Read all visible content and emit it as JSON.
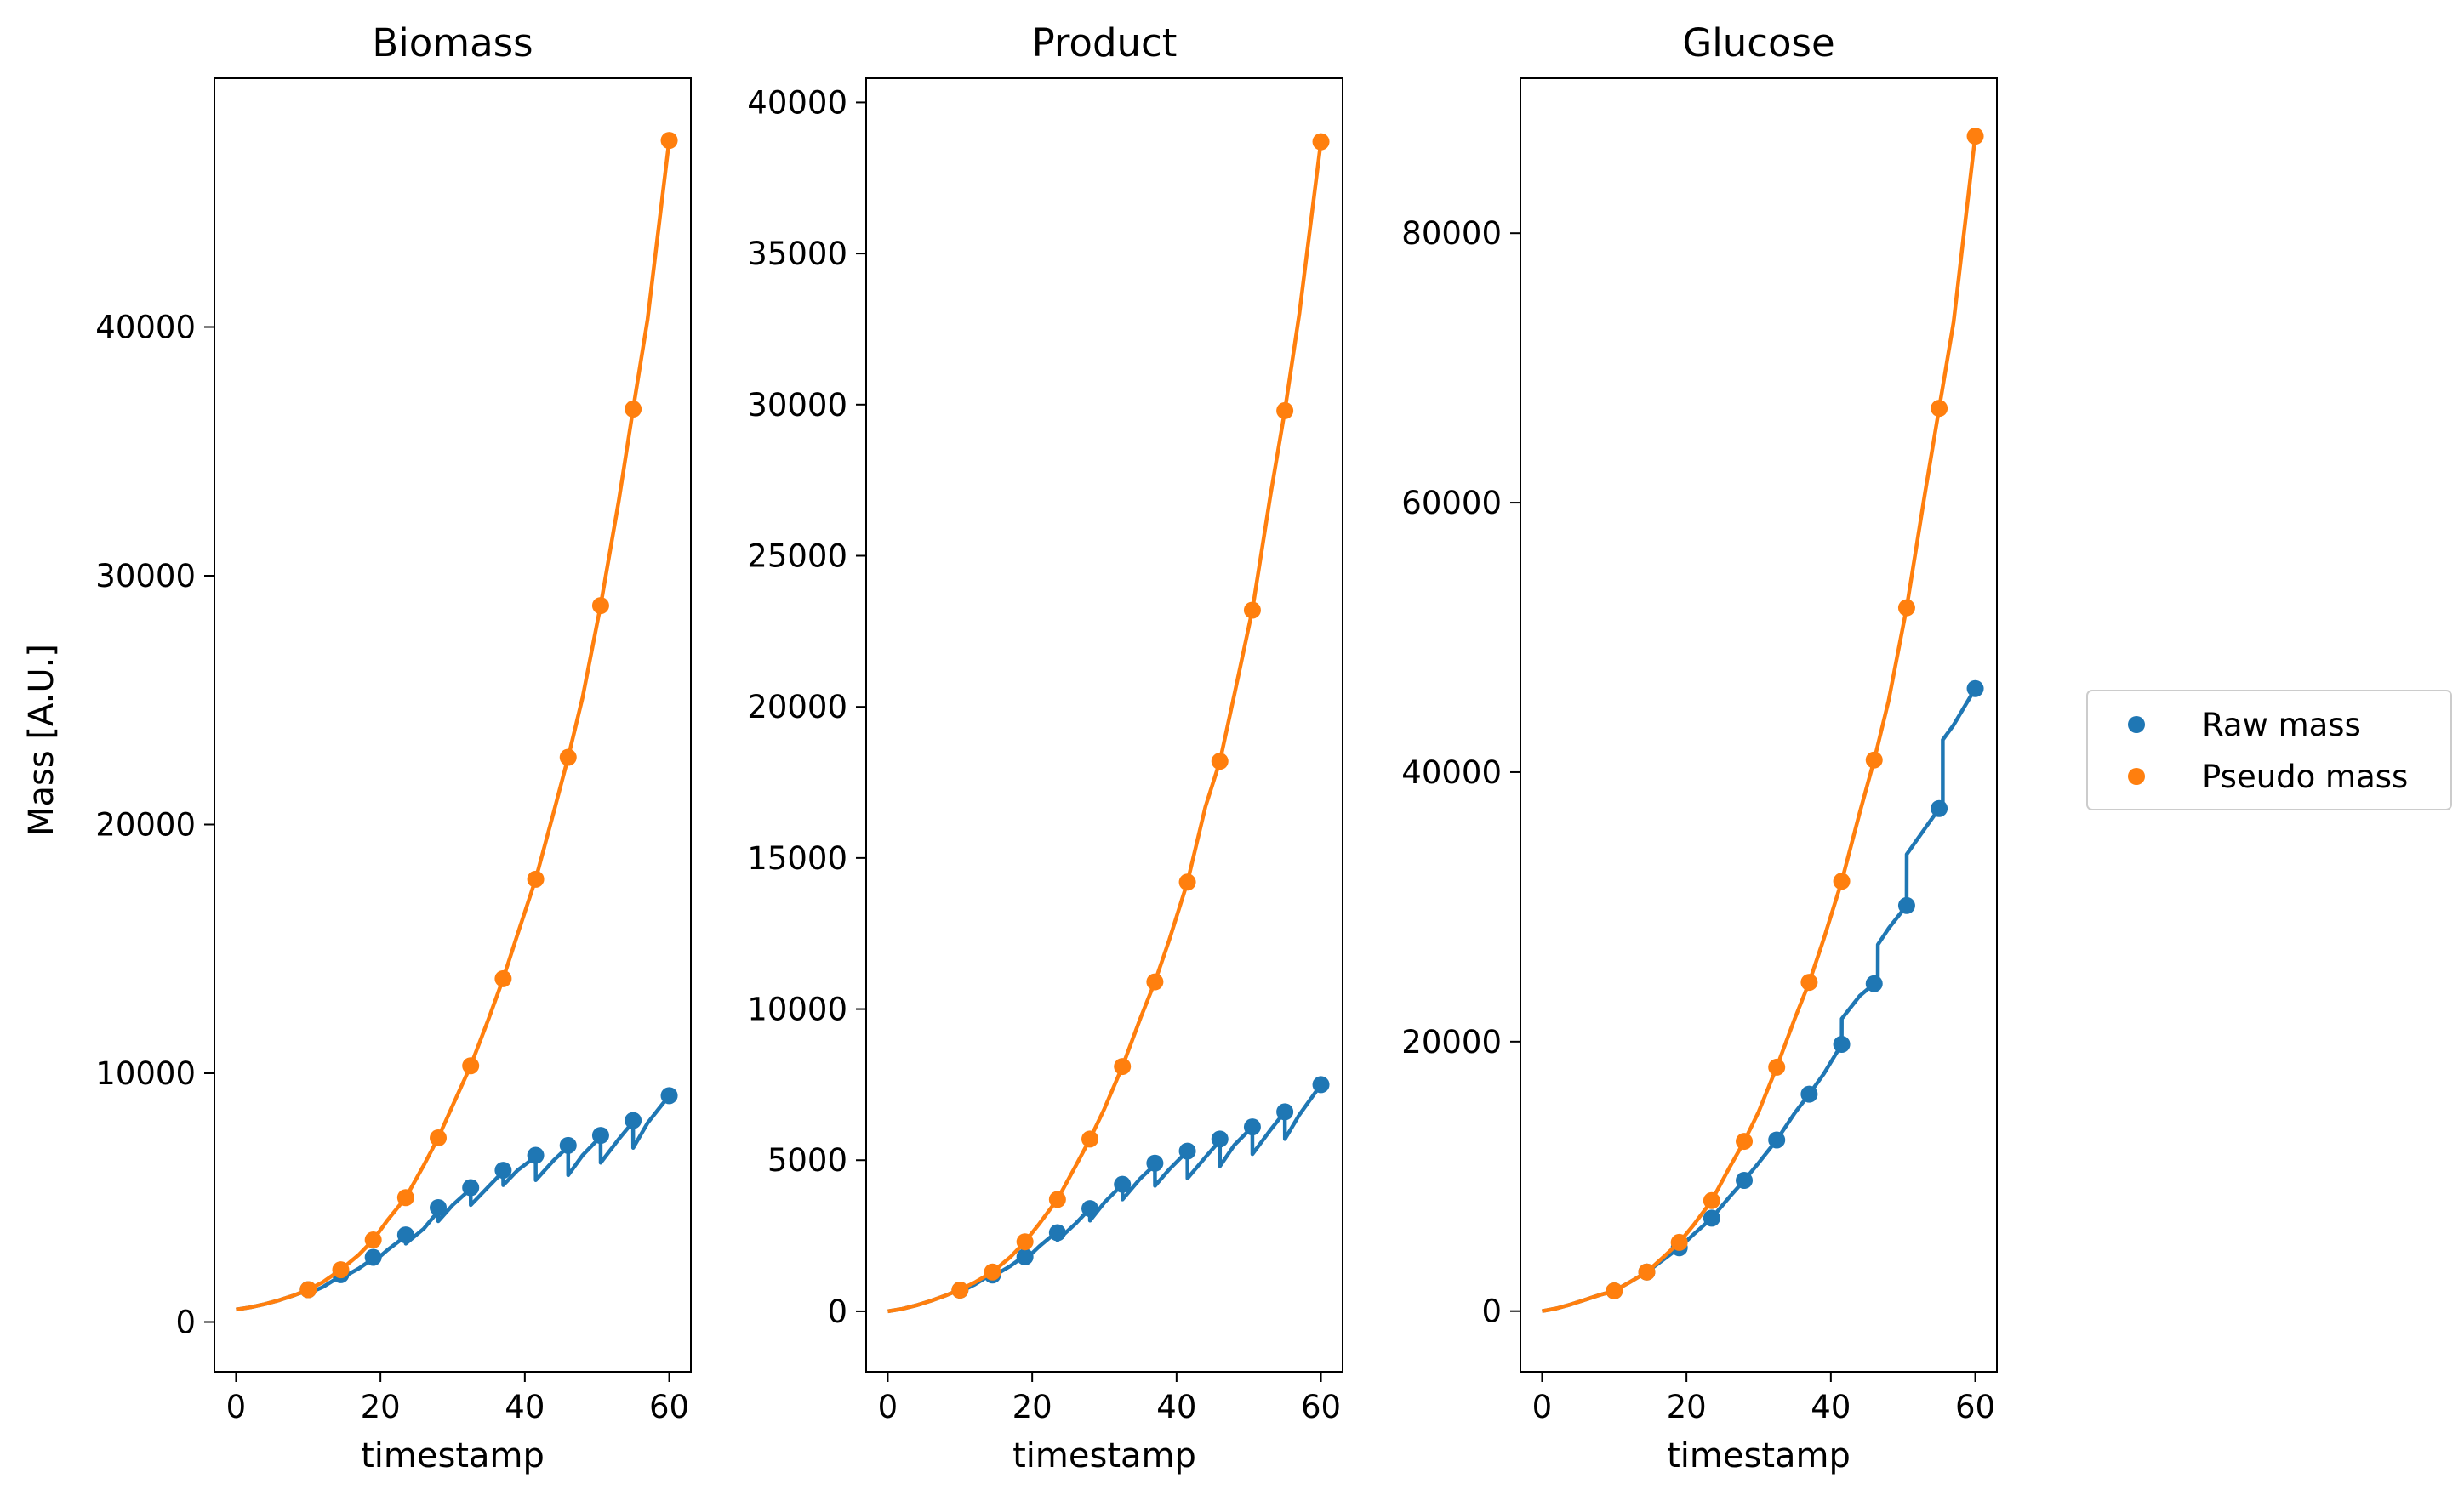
{
  "ylabel": "Mass [A.U.]",
  "legend": {
    "position": "right",
    "entries": [
      {
        "label": "Raw mass",
        "color": "#1f77b4"
      },
      {
        "label": "Pseudo mass",
        "color": "#ff7f0e"
      }
    ]
  },
  "colors": {
    "raw": "#1f77b4",
    "pseudo": "#ff7f0e"
  },
  "chart_data": [
    {
      "type": "line",
      "title": "Biomass",
      "xlabel": "timestamp",
      "ylabel": "Mass [A.U.]",
      "xlim": [
        -3,
        63
      ],
      "ylim": [
        -2000,
        50000
      ],
      "xticks": [
        0,
        20,
        40,
        60
      ],
      "yticks": [
        0,
        10000,
        20000,
        30000,
        40000
      ],
      "grid": false,
      "series": [
        {
          "name": "Raw mass",
          "markers": {
            "x": [
              10,
              14.5,
              19,
              23.5,
              28,
              32.5,
              37,
              41.5,
              46,
              50.5,
              55,
              60
            ],
            "y": [
              1300,
              1900,
              2600,
              3500,
              4600,
              5400,
              6100,
              6700,
              7100,
              7500,
              8100,
              9100
            ]
          },
          "line": {
            "x": [
              0,
              2,
              4,
              6,
              8,
              10,
              10.01,
              12,
              14.5,
              14.51,
              17,
              19,
              19.01,
              21,
              23.5,
              23.51,
              26,
              28,
              28.01,
              30,
              32.5,
              32.51,
              35,
              37,
              37.01,
              39,
              41.5,
              41.51,
              44,
              46,
              46.01,
              48,
              50.5,
              50.51,
              53,
              55,
              55.01,
              57,
              60
            ],
            "y": [
              500,
              590,
              720,
              880,
              1070,
              1280,
              1150,
              1400,
              1850,
              1750,
              2150,
              2550,
              2400,
              2900,
              3450,
              3150,
              3750,
              4450,
              4050,
              4700,
              5350,
              4700,
              5450,
              6050,
              5500,
              6100,
              6650,
              5700,
              6500,
              7050,
              5900,
              6700,
              7450,
              6400,
              7350,
              8050,
              7000,
              8000,
              9100
            ]
          }
        },
        {
          "name": "Pseudo mass",
          "markers": {
            "x": [
              10,
              14.5,
              19,
              23.5,
              28,
              32.5,
              37,
              41.5,
              46,
              50.5,
              55,
              60
            ],
            "y": [
              1300,
              2100,
              3300,
              5000,
              7400,
              10300,
              13800,
              17800,
              22700,
              28800,
              36700,
              47500
            ]
          },
          "line": {
            "x": [
              0,
              2,
              4,
              6,
              8,
              10,
              12,
              14.5,
              17,
              19,
              21,
              23.5,
              26,
              28,
              30,
              32.5,
              35,
              37,
              39,
              41.5,
              44,
              46,
              48,
              50.5,
              53,
              55,
              57,
              60
            ],
            "y": [
              500,
              590,
              720,
              880,
              1070,
              1300,
              1600,
              2100,
              2700,
              3300,
              4100,
              5000,
              6300,
              7400,
              8700,
              10300,
              12200,
              13800,
              15600,
              17800,
              20500,
              22700,
              25100,
              28800,
              33000,
              36700,
              40300,
              47500
            ]
          }
        }
      ]
    },
    {
      "type": "line",
      "title": "Product",
      "xlabel": "timestamp",
      "xlim": [
        -3,
        63
      ],
      "ylim": [
        -2000,
        40800
      ],
      "xticks": [
        0,
        20,
        40,
        60
      ],
      "yticks": [
        0,
        5000,
        10000,
        15000,
        20000,
        25000,
        30000,
        35000,
        40000
      ],
      "grid": false,
      "series": [
        {
          "name": "Raw mass",
          "markers": {
            "x": [
              10,
              14.5,
              19,
              23.5,
              28,
              32.5,
              37,
              41.5,
              46,
              50.5,
              55,
              60
            ],
            "y": [
              700,
              1200,
              1800,
              2600,
              3400,
              4200,
              4900,
              5300,
              5700,
              6100,
              6600,
              7500
            ]
          },
          "line": {
            "x": [
              0,
              2,
              4,
              6,
              8,
              10,
              10.01,
              12,
              14.5,
              14.51,
              17,
              19,
              19.01,
              21,
              23.5,
              23.51,
              26,
              28,
              28.01,
              30,
              32.5,
              32.51,
              35,
              37,
              37.01,
              39,
              41.5,
              41.51,
              44,
              46,
              46.01,
              48,
              50.5,
              50.51,
              53,
              55,
              55.01,
              57,
              60
            ],
            "y": [
              0,
              80,
              200,
              350,
              520,
              720,
              650,
              880,
              1250,
              1150,
              1500,
              1850,
              1700,
              2150,
              2650,
              2350,
              2900,
              3400,
              3000,
              3600,
              4200,
              3700,
              4400,
              4850,
              4150,
              4700,
              5300,
              4400,
              5100,
              5650,
              4800,
              5500,
              6100,
              5200,
              6000,
              6600,
              5700,
              6500,
              7500
            ]
          }
        },
        {
          "name": "Pseudo mass",
          "markers": {
            "x": [
              10,
              14.5,
              19,
              23.5,
              28,
              32.5,
              37,
              41.5,
              46,
              50.5,
              55,
              60
            ],
            "y": [
              700,
              1300,
              2300,
              3700,
              5700,
              8100,
              10900,
              14200,
              18200,
              23200,
              29800,
              38700
            ]
          },
          "line": {
            "x": [
              0,
              2,
              4,
              6,
              8,
              10,
              12,
              14.5,
              17,
              19,
              21,
              23.5,
              26,
              28,
              30,
              32.5,
              35,
              37,
              39,
              41.5,
              44,
              46,
              48,
              50.5,
              53,
              55,
              57,
              60
            ],
            "y": [
              0,
              80,
              200,
              350,
              520,
              720,
              950,
              1300,
              1800,
              2300,
              2900,
              3700,
              4800,
              5700,
              6700,
              8100,
              9700,
              10900,
              12300,
              14200,
              16700,
              18200,
              20400,
              23200,
              27000,
              29800,
              33000,
              38700
            ]
          }
        }
      ]
    },
    {
      "type": "line",
      "title": "Glucose",
      "xlabel": "timestamp",
      "xlim": [
        -3,
        63
      ],
      "ylim": [
        -4500,
        91500
      ],
      "xticks": [
        0,
        20,
        40,
        60
      ],
      "yticks": [
        0,
        20000,
        40000,
        60000,
        80000
      ],
      "grid": false,
      "series": [
        {
          "name": "Raw mass",
          "markers": {
            "x": [
              10,
              14.5,
              19,
              23.5,
              28,
              32.5,
              37,
              41.5,
              46,
              50.5,
              55,
              60
            ],
            "y": [
              1500,
              2900,
              4700,
              6900,
              9700,
              12700,
              16100,
              19800,
              24300,
              30100,
              37300,
              46200
            ]
          },
          "line": {
            "x": [
              0,
              2,
              4,
              6,
              8,
              10,
              12,
              14.5,
              17,
              19,
              21,
              23.5,
              26,
              28,
              30,
              32.5,
              35,
              37,
              39,
              41.5,
              41.51,
              44,
              46,
              46.5,
              46.51,
              48,
              50.5,
              50.51,
              53,
              55,
              55.5,
              55.51,
              57,
              60
            ],
            "y": [
              0,
              200,
              500,
              850,
              1200,
              1500,
              2100,
              2900,
              3900,
              4700,
              5700,
              6900,
              8500,
              9700,
              11000,
              12700,
              14700,
              16100,
              17600,
              19800,
              21700,
              23400,
              24300,
              24400,
              27200,
              28400,
              30100,
              33900,
              35800,
              37300,
              37500,
              42400,
              43500,
              46200
            ]
          }
        },
        {
          "name": "Pseudo mass",
          "markers": {
            "x": [
              10,
              14.5,
              19,
              23.5,
              28,
              32.5,
              37,
              41.5,
              46,
              50.5,
              55,
              60
            ],
            "y": [
              1500,
              2900,
              5100,
              8200,
              12600,
              18100,
              24400,
              31900,
              40900,
              52200,
              67000,
              87200
            ]
          },
          "line": {
            "x": [
              0,
              2,
              4,
              6,
              8,
              10,
              12,
              14.5,
              17,
              19,
              21,
              23.5,
              26,
              28,
              30,
              32.5,
              35,
              37,
              39,
              41.5,
              44,
              46,
              48,
              50.5,
              53,
              55,
              57,
              60
            ],
            "y": [
              0,
              200,
              500,
              850,
              1200,
              1500,
              2100,
              2900,
              4100,
              5100,
              6400,
              8200,
              10700,
              12600,
              14800,
              18100,
              21700,
              24400,
              27600,
              31900,
              37000,
              40900,
              45300,
              52200,
              60600,
              67000,
              73400,
              87200
            ]
          }
        }
      ]
    }
  ]
}
